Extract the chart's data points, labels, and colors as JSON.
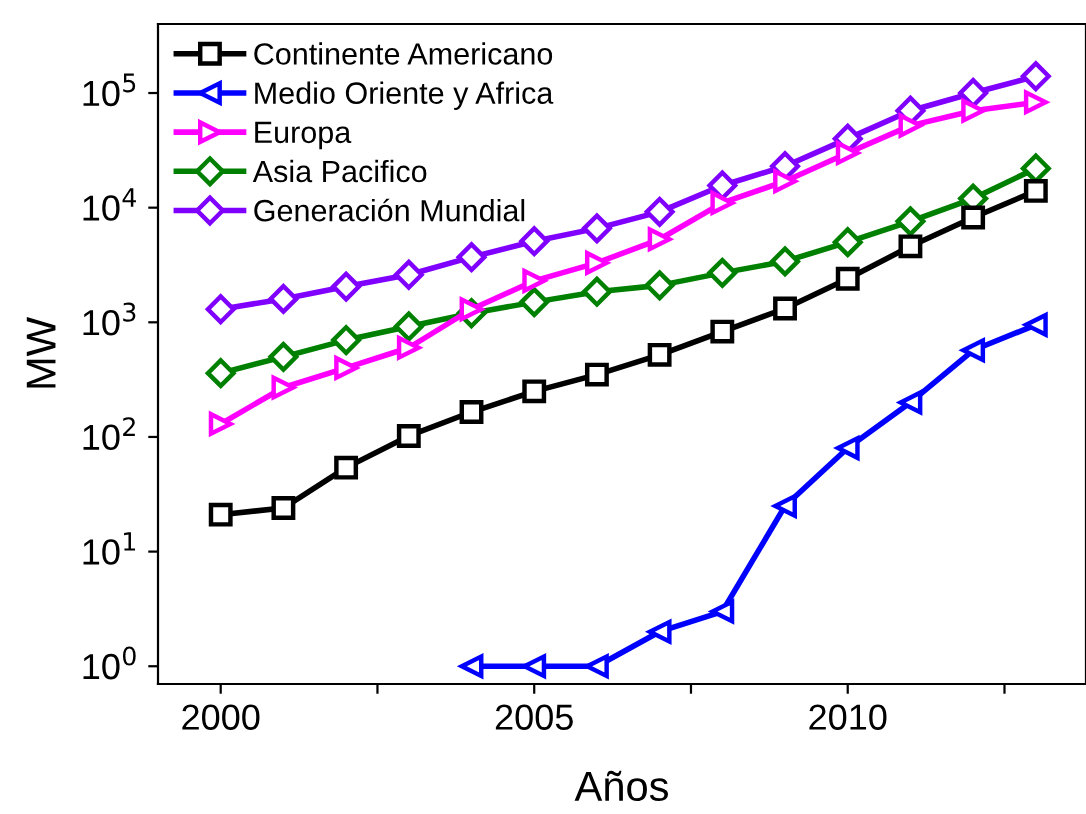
{
  "chart_data": {
    "type": "line",
    "xlabel": "Años",
    "ylabel": "MW",
    "log": "y",
    "grid": false,
    "legend": "top left",
    "x": [
      2000,
      2001,
      2002,
      2003,
      2004,
      2005,
      2006,
      2007,
      2008,
      2009,
      2010,
      2011,
      2012,
      2013
    ],
    "xlim": [
      1999,
      2013.8
    ],
    "ylim": [
      0.7,
      400000
    ],
    "xticks": [
      2000,
      {
        "value": 2002.5,
        "label": null
      },
      2005,
      {
        "value": 2007.5,
        "label": null
      },
      2010,
      {
        "value": 2012.5,
        "label": null
      }
    ],
    "yticks": [
      {
        "value": 1,
        "label": "10$^{0}$"
      },
      {
        "value": 10,
        "label": "10$^{1}$"
      },
      {
        "value": 100,
        "label": "10$^{2}$"
      },
      {
        "value": 1000,
        "label": "10$^{3}$"
      },
      {
        "value": 10000,
        "label": "10$^{4}$"
      },
      {
        "value": 100000,
        "label": "10$^{5}$"
      }
    ],
    "series": [
      {
        "name": "Continente Americano",
        "color": "#000000",
        "marker": "square",
        "values": [
          21,
          24,
          54,
          102,
          165,
          250,
          350,
          520,
          830,
          1320,
          2400,
          4600,
          8200,
          14000
        ]
      },
      {
        "name": "Medio Oriente y Africa",
        "color": "#0000ff",
        "marker": "triangle-left",
        "values": [
          null,
          null,
          null,
          null,
          1,
          1,
          1,
          2,
          3,
          25,
          80,
          200,
          570,
          950
        ]
      },
      {
        "name": "Europa",
        "color": "#ff00ff",
        "marker": "triangle-right",
        "values": [
          130,
          270,
          400,
          600,
          1300,
          2300,
          3300,
          5300,
          11000,
          17000,
          30000,
          52000,
          70000,
          83000
        ]
      },
      {
        "name": "Asia Pacifico",
        "color": "#008000",
        "marker": "diamond",
        "values": [
          360,
          500,
          700,
          920,
          1200,
          1500,
          1850,
          2100,
          2700,
          3400,
          5000,
          7600,
          12000,
          22000
        ]
      },
      {
        "name": "Generación Mundial",
        "color": "#8000ff",
        "marker": "diamond",
        "values": [
          1300,
          1600,
          2050,
          2600,
          3700,
          5100,
          6600,
          9200,
          15600,
          23000,
          40000,
          70000,
          100000,
          140000
        ]
      }
    ]
  }
}
